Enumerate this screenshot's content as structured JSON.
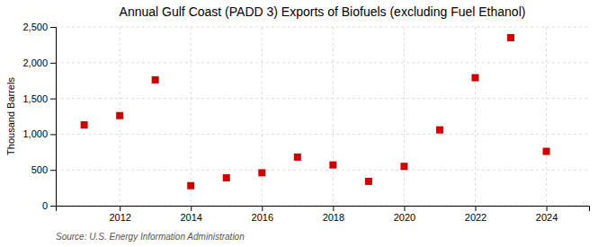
{
  "chart_data": {
    "type": "scatter",
    "title": "Annual Gulf Coast (PADD 3) Exports of Biofuels (excluding Fuel Ethanol)",
    "ylabel": "Thousand Barrels",
    "source": "Source: U.S. Energy Information Administration",
    "x": [
      2011,
      2012,
      2013,
      2014,
      2015,
      2016,
      2017,
      2018,
      2019,
      2020,
      2021,
      2022,
      2023,
      2024
    ],
    "values": [
      1130,
      1260,
      1760,
      280,
      390,
      460,
      680,
      570,
      340,
      550,
      1060,
      1790,
      2350,
      760
    ],
    "color": "#cc0000",
    "marker": "square",
    "xlim": [
      2010.2,
      2025.2
    ],
    "xticks": [
      2012,
      2014,
      2016,
      2018,
      2020,
      2022,
      2024
    ],
    "ylim": [
      0,
      2500
    ],
    "yticks": [
      0,
      500,
      {
        "value": 1000,
        "label": "1,000"
      },
      {
        "value": 1500,
        "label": "1,500"
      },
      {
        "value": 2000,
        "label": "2,000"
      },
      {
        "value": 2500,
        "label": "2,500"
      }
    ],
    "grid": true
  }
}
